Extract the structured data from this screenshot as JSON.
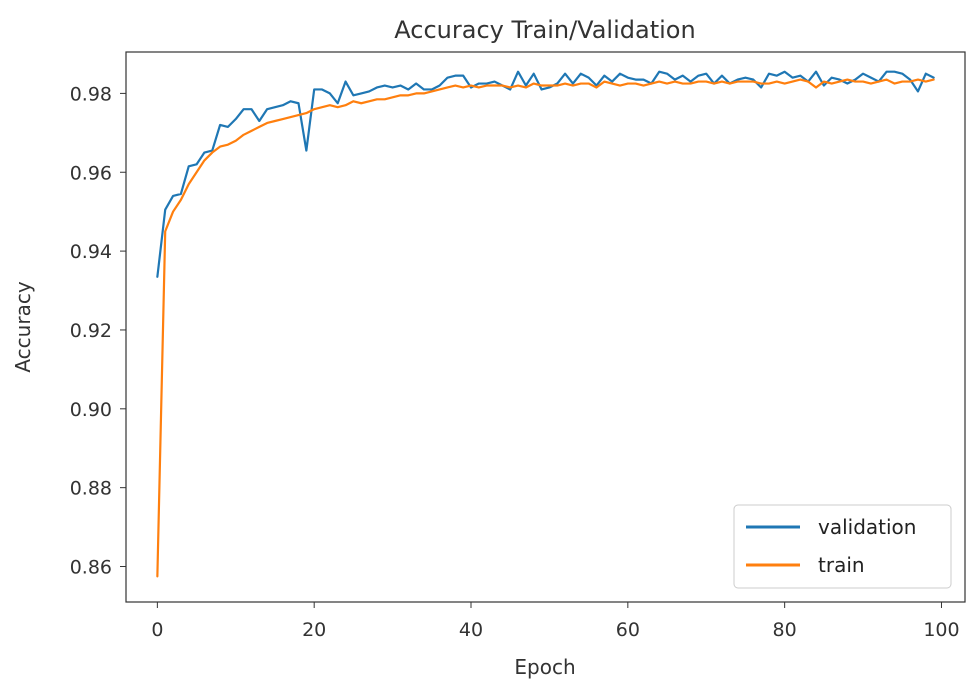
{
  "chart_data": {
    "type": "line",
    "title": "Accuracy Train/Validation",
    "xlabel": "Epoch",
    "ylabel": "Accuracy",
    "xlim": [
      -4,
      103
    ],
    "ylim": [
      0.851,
      0.9905
    ],
    "xticks": [
      0,
      20,
      40,
      60,
      80,
      100
    ],
    "xtick_labels": [
      "0",
      "20",
      "40",
      "60",
      "80",
      "100"
    ],
    "yticks": [
      0.86,
      0.88,
      0.9,
      0.92,
      0.94,
      0.96,
      0.98
    ],
    "ytick_labels": [
      "0.86",
      "0.88",
      "0.90",
      "0.92",
      "0.94",
      "0.96",
      "0.98"
    ],
    "grid": false,
    "legend_position": "bottom-right",
    "x": [
      0,
      1,
      2,
      3,
      4,
      5,
      6,
      7,
      8,
      9,
      10,
      11,
      12,
      13,
      14,
      15,
      16,
      17,
      18,
      19,
      20,
      21,
      22,
      23,
      24,
      25,
      26,
      27,
      28,
      29,
      30,
      31,
      32,
      33,
      34,
      35,
      36,
      37,
      38,
      39,
      40,
      41,
      42,
      43,
      44,
      45,
      46,
      47,
      48,
      49,
      50,
      51,
      52,
      53,
      54,
      55,
      56,
      57,
      58,
      59,
      60,
      61,
      62,
      63,
      64,
      65,
      66,
      67,
      68,
      69,
      70,
      71,
      72,
      73,
      74,
      75,
      76,
      77,
      78,
      79,
      80,
      81,
      82,
      83,
      84,
      85,
      86,
      87,
      88,
      89,
      90,
      91,
      92,
      93,
      94,
      95,
      96,
      97,
      98,
      99
    ],
    "series": [
      {
        "name": "validation",
        "color": "#1f77b4",
        "values": [
          0.9335,
          0.9505,
          0.954,
          0.9545,
          0.9615,
          0.962,
          0.965,
          0.9655,
          0.972,
          0.9715,
          0.9735,
          0.976,
          0.976,
          0.973,
          0.976,
          0.9765,
          0.977,
          0.978,
          0.9775,
          0.9655,
          0.981,
          0.981,
          0.98,
          0.9775,
          0.983,
          0.9795,
          0.98,
          0.9805,
          0.9815,
          0.982,
          0.9815,
          0.982,
          0.981,
          0.9825,
          0.981,
          0.981,
          0.982,
          0.984,
          0.9845,
          0.9845,
          0.9815,
          0.9825,
          0.9825,
          0.983,
          0.982,
          0.981,
          0.9855,
          0.982,
          0.985,
          0.981,
          0.9815,
          0.9825,
          0.985,
          0.9825,
          0.985,
          0.984,
          0.982,
          0.9845,
          0.983,
          0.985,
          0.984,
          0.9835,
          0.9835,
          0.9825,
          0.9855,
          0.985,
          0.9835,
          0.9845,
          0.983,
          0.9845,
          0.985,
          0.9825,
          0.9845,
          0.9825,
          0.9835,
          0.984,
          0.9835,
          0.9815,
          0.985,
          0.9845,
          0.9855,
          0.984,
          0.9845,
          0.983,
          0.9855,
          0.982,
          0.984,
          0.9835,
          0.9825,
          0.9835,
          0.985,
          0.984,
          0.983,
          0.9855,
          0.9855,
          0.985,
          0.9835,
          0.9805,
          0.985,
          0.984
        ]
      },
      {
        "name": "train",
        "color": "#ff7f0e",
        "values": [
          0.8575,
          0.945,
          0.95,
          0.953,
          0.957,
          0.96,
          0.963,
          0.965,
          0.9665,
          0.967,
          0.968,
          0.9695,
          0.9705,
          0.9715,
          0.9725,
          0.973,
          0.9735,
          0.974,
          0.9745,
          0.975,
          0.976,
          0.9765,
          0.977,
          0.9765,
          0.977,
          0.978,
          0.9775,
          0.978,
          0.9785,
          0.9785,
          0.979,
          0.9795,
          0.9795,
          0.98,
          0.98,
          0.9805,
          0.981,
          0.9815,
          0.982,
          0.9815,
          0.982,
          0.9815,
          0.982,
          0.982,
          0.982,
          0.9815,
          0.982,
          0.9815,
          0.9825,
          0.982,
          0.982,
          0.982,
          0.9825,
          0.982,
          0.9825,
          0.9825,
          0.9815,
          0.983,
          0.9825,
          0.982,
          0.9825,
          0.9825,
          0.982,
          0.9825,
          0.983,
          0.9825,
          0.983,
          0.9825,
          0.9825,
          0.983,
          0.983,
          0.9825,
          0.983,
          0.9825,
          0.983,
          0.983,
          0.983,
          0.9825,
          0.9825,
          0.983,
          0.9825,
          0.983,
          0.9835,
          0.983,
          0.9815,
          0.983,
          0.9825,
          0.983,
          0.9835,
          0.983,
          0.983,
          0.9825,
          0.983,
          0.9835,
          0.9825,
          0.983,
          0.983,
          0.9835,
          0.983,
          0.9835
        ]
      }
    ]
  }
}
